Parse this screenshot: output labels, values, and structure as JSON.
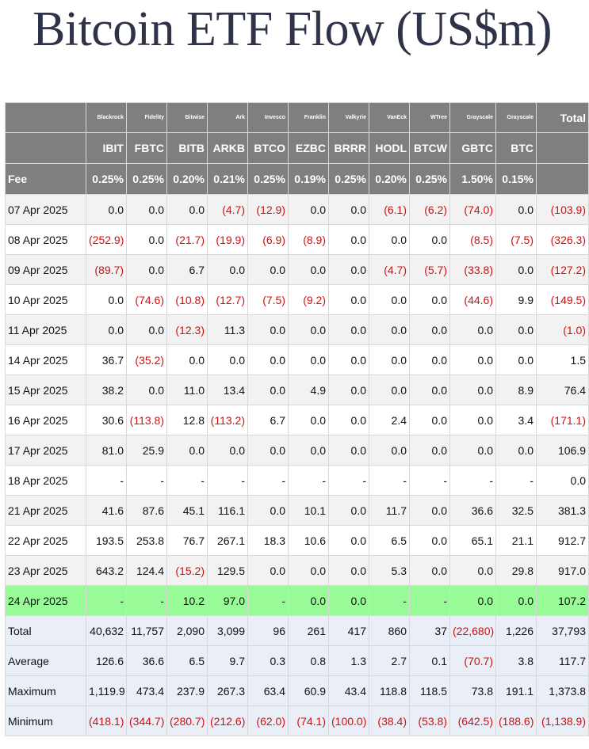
{
  "title": "Bitcoin ETF Flow (US$m)",
  "colors": {
    "header_bg": "#7f7f7f",
    "negative": "#d01010",
    "highlight": "#98fb98",
    "stats_bg": "#e9eef7",
    "title": "#2f3347"
  },
  "funds": [
    {
      "issuer": "Blackrock",
      "ticker": "IBIT",
      "fee": "0.25%"
    },
    {
      "issuer": "Fidelity",
      "ticker": "FBTC",
      "fee": "0.25%"
    },
    {
      "issuer": "Bitwise",
      "ticker": "BITB",
      "fee": "0.20%"
    },
    {
      "issuer": "Ark",
      "ticker": "ARKB",
      "fee": "0.21%"
    },
    {
      "issuer": "Invesco",
      "ticker": "BTCO",
      "fee": "0.25%"
    },
    {
      "issuer": "Franklin",
      "ticker": "EZBC",
      "fee": "0.19%"
    },
    {
      "issuer": "Valkyrie",
      "ticker": "BRRR",
      "fee": "0.25%"
    },
    {
      "issuer": "VanEck",
      "ticker": "HODL",
      "fee": "0.20%"
    },
    {
      "issuer": "WTree",
      "ticker": "BTCW",
      "fee": "0.25%"
    },
    {
      "issuer": "Grayscale",
      "ticker": "GBTC",
      "fee": "1.50%"
    },
    {
      "issuer": "Grayscale",
      "ticker": "BTC",
      "fee": "0.15%"
    }
  ],
  "total_label": "Total",
  "fee_label": "Fee",
  "rows": [
    {
      "date": "07 Apr 2025",
      "cells": [
        "0.0",
        "0.0",
        "0.0",
        "(4.7)",
        "(12.9)",
        "0.0",
        "0.0",
        "(6.1)",
        "(6.2)",
        "(74.0)",
        "0.0",
        "(103.9)"
      ]
    },
    {
      "date": "08 Apr 2025",
      "cells": [
        "(252.9)",
        "0.0",
        "(21.7)",
        "(19.9)",
        "(6.9)",
        "(8.9)",
        "0.0",
        "0.0",
        "0.0",
        "(8.5)",
        "(7.5)",
        "(326.3)"
      ]
    },
    {
      "date": "09 Apr 2025",
      "cells": [
        "(89.7)",
        "0.0",
        "6.7",
        "0.0",
        "0.0",
        "0.0",
        "0.0",
        "(4.7)",
        "(5.7)",
        "(33.8)",
        "0.0",
        "(127.2)"
      ]
    },
    {
      "date": "10 Apr 2025",
      "cells": [
        "0.0",
        "(74.6)",
        "(10.8)",
        "(12.7)",
        "(7.5)",
        "(9.2)",
        "0.0",
        "0.0",
        "0.0",
        "(44.6)",
        "9.9",
        "(149.5)"
      ]
    },
    {
      "date": "11 Apr 2025",
      "cells": [
        "0.0",
        "0.0",
        "(12.3)",
        "11.3",
        "0.0",
        "0.0",
        "0.0",
        "0.0",
        "0.0",
        "0.0",
        "0.0",
        "(1.0)"
      ]
    },
    {
      "date": "14 Apr 2025",
      "cells": [
        "36.7",
        "(35.2)",
        "0.0",
        "0.0",
        "0.0",
        "0.0",
        "0.0",
        "0.0",
        "0.0",
        "0.0",
        "0.0",
        "1.5"
      ]
    },
    {
      "date": "15 Apr 2025",
      "cells": [
        "38.2",
        "0.0",
        "11.0",
        "13.4",
        "0.0",
        "4.9",
        "0.0",
        "0.0",
        "0.0",
        "0.0",
        "8.9",
        "76.4"
      ]
    },
    {
      "date": "16 Apr 2025",
      "cells": [
        "30.6",
        "(113.8)",
        "12.8",
        "(113.2)",
        "6.7",
        "0.0",
        "0.0",
        "2.4",
        "0.0",
        "0.0",
        "3.4",
        "(171.1)"
      ]
    },
    {
      "date": "17 Apr 2025",
      "cells": [
        "81.0",
        "25.9",
        "0.0",
        "0.0",
        "0.0",
        "0.0",
        "0.0",
        "0.0",
        "0.0",
        "0.0",
        "0.0",
        "106.9"
      ]
    },
    {
      "date": "18 Apr 2025",
      "cells": [
        "-",
        "-",
        "-",
        "-",
        "-",
        "-",
        "-",
        "-",
        "-",
        "-",
        "-",
        "0.0"
      ]
    },
    {
      "date": "21 Apr 2025",
      "cells": [
        "41.6",
        "87.6",
        "45.1",
        "116.1",
        "0.0",
        "10.1",
        "0.0",
        "11.7",
        "0.0",
        "36.6",
        "32.5",
        "381.3"
      ]
    },
    {
      "date": "22 Apr 2025",
      "cells": [
        "193.5",
        "253.8",
        "76.7",
        "267.1",
        "18.3",
        "10.6",
        "0.0",
        "6.5",
        "0.0",
        "65.1",
        "21.1",
        "912.7"
      ]
    },
    {
      "date": "23 Apr 2025",
      "cells": [
        "643.2",
        "124.4",
        "(15.2)",
        "129.5",
        "0.0",
        "0.0",
        "0.0",
        "5.3",
        "0.0",
        "0.0",
        "29.8",
        "917.0"
      ]
    },
    {
      "date": "24 Apr 2025",
      "cells": [
        "-",
        "-",
        "10.2",
        "97.0",
        "-",
        "0.0",
        "0.0",
        "-",
        "-",
        "0.0",
        "0.0",
        "107.2"
      ],
      "highlight": true
    }
  ],
  "stats": [
    {
      "label": "Total",
      "cells": [
        "40,632",
        "11,757",
        "2,090",
        "3,099",
        "96",
        "261",
        "417",
        "860",
        "37",
        "(22,680)",
        "1,226",
        "37,793"
      ]
    },
    {
      "label": "Average",
      "cells": [
        "126.6",
        "36.6",
        "6.5",
        "9.7",
        "0.3",
        "0.8",
        "1.3",
        "2.7",
        "0.1",
        "(70.7)",
        "3.8",
        "117.7"
      ]
    },
    {
      "label": "Maximum",
      "cells": [
        "1,119.9",
        "473.4",
        "237.9",
        "267.3",
        "63.4",
        "60.9",
        "43.4",
        "118.8",
        "118.5",
        "73.8",
        "191.1",
        "1,373.8"
      ]
    },
    {
      "label": "Minimum",
      "cells": [
        "(418.1)",
        "(344.7)",
        "(280.7)",
        "(212.6)",
        "(62.0)",
        "(74.1)",
        "(100.0)",
        "(38.4)",
        "(53.8)",
        "(642.5)",
        "(188.6)",
        "(1,138.9)"
      ]
    }
  ]
}
